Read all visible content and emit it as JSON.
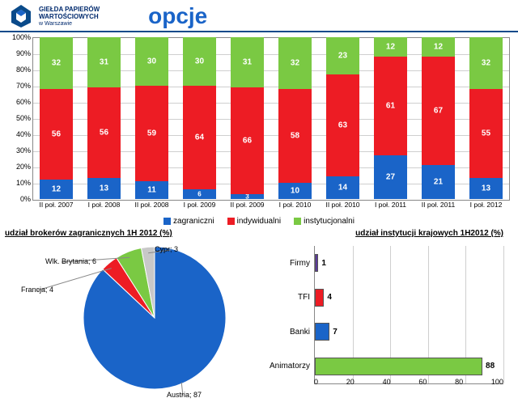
{
  "header": {
    "org_line1": "GIEŁDA PAPIERÓW",
    "org_line2": "WARTOŚCIOWYCH",
    "org_line3": "w Warszawie",
    "title": "opcje",
    "logo_color": "#0a4a8a"
  },
  "stacked": {
    "type": "stacked-bar-100",
    "categories": [
      "II poł. 2007",
      "I poł. 2008",
      "II poł. 2008",
      "I poł. 2009",
      "II poł. 2009",
      "I poł. 2010",
      "II poł. 2010",
      "I poł. 2011",
      "II poł. 2011",
      "I poł. 2012"
    ],
    "series": [
      {
        "name": "zagraniczni",
        "color": "#1a64c8",
        "values": [
          12,
          13,
          11,
          6,
          3,
          10,
          14,
          27,
          21,
          13
        ]
      },
      {
        "name": "indywidualni",
        "color": "#ed1c24",
        "values": [
          56,
          56,
          59,
          64,
          66,
          58,
          63,
          61,
          67,
          55
        ]
      },
      {
        "name": "instytucjonalni",
        "color": "#7ac943",
        "values": [
          32,
          31,
          30,
          30,
          31,
          32,
          23,
          12,
          12,
          32
        ]
      }
    ],
    "ylim": [
      0,
      100
    ],
    "ytick_step": 10,
    "bg": "#ffffff",
    "grid_color": "#cfcfcf",
    "label_fontsize": 10,
    "category_fontsize": 8.5
  },
  "pie": {
    "type": "pie",
    "title": "udział brokerów zagranicznych 1H 2012 (%)",
    "slices": [
      {
        "label": "Austria",
        "value": 87,
        "color": "#1a64c8"
      },
      {
        "label": "Francja",
        "value": 4,
        "color": "#ed1c24"
      },
      {
        "label": "Wlk. Brytania",
        "value": 6,
        "color": "#7ac943"
      },
      {
        "label": "Cypr",
        "value": 3,
        "color": "#c8c8c8"
      }
    ],
    "label_fontsize": 9
  },
  "hbar": {
    "type": "bar-horizontal",
    "title": "udział instytucji krajowych 1H2012 (%)",
    "categories": [
      "Firmy",
      "TFI",
      "Banki",
      "Animatorzy"
    ],
    "values": [
      1,
      4,
      7,
      88
    ],
    "colors": [
      "#5b3a9b",
      "#ed1c24",
      "#1a64c8",
      "#7ac943"
    ],
    "xlim": [
      0,
      100
    ],
    "xtick_step": 20,
    "label_fontsize": 10
  }
}
